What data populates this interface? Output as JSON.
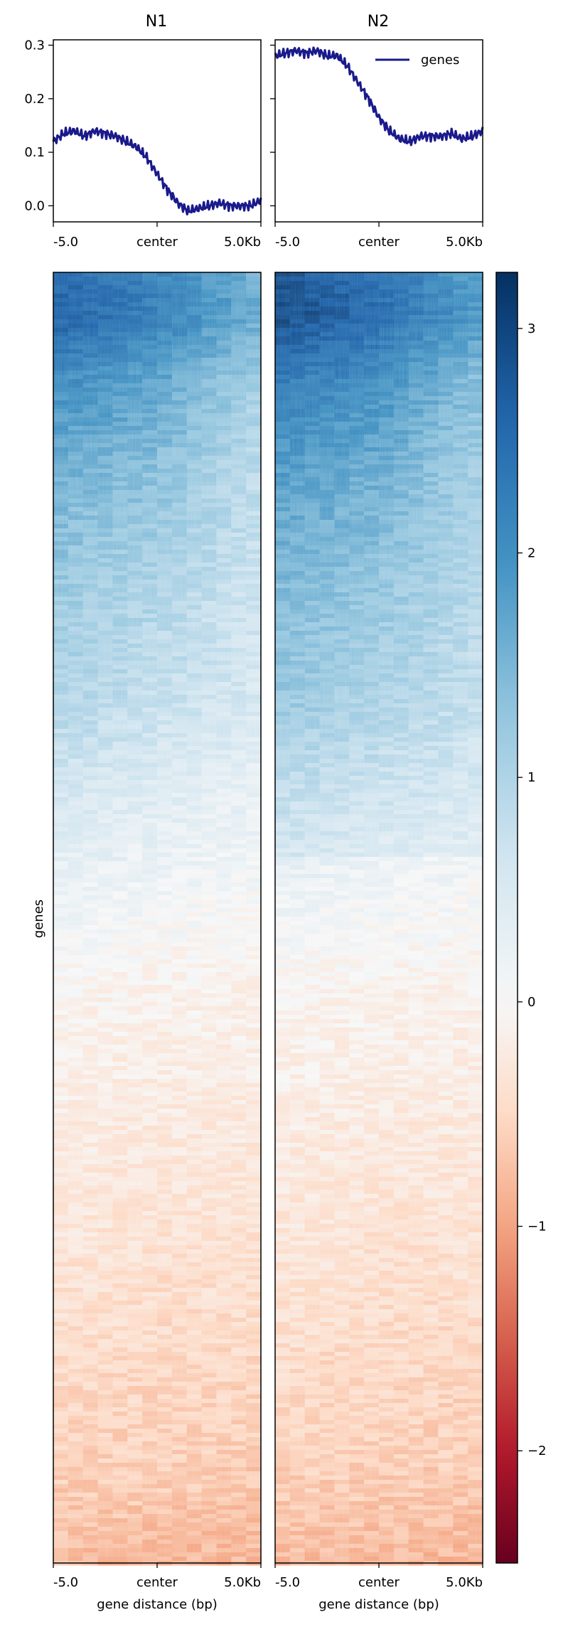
{
  "chart_data": {
    "type": "heatmap",
    "description_note": "",
    "profiles": [
      {
        "title": "N1",
        "series": [
          {
            "name": "genes",
            "color": "#1a1a8c",
            "x": [
              -5.0,
              -4.5,
              -4.0,
              -3.5,
              -3.0,
              -2.5,
              -2.0,
              -1.5,
              -1.0,
              -0.5,
              0.0,
              0.5,
              1.0,
              1.5,
              2.0,
              2.5,
              3.0,
              3.5,
              4.0,
              4.5,
              5.0
            ],
            "y": [
              0.12,
              0.135,
              0.14,
              0.13,
              0.14,
              0.135,
              0.13,
              0.12,
              0.11,
              0.09,
              0.06,
              0.03,
              0.005,
              -0.01,
              -0.005,
              0.0,
              0.005,
              0.0,
              0.0,
              0.0,
              0.01
            ]
          }
        ]
      },
      {
        "title": "N2",
        "series": [
          {
            "name": "genes",
            "color": "#1a1a8c",
            "x": [
              -5.0,
              -4.5,
              -4.0,
              -3.5,
              -3.0,
              -2.5,
              -2.0,
              -1.5,
              -1.0,
              -0.5,
              0.0,
              0.5,
              1.0,
              1.5,
              2.0,
              2.5,
              3.0,
              3.5,
              4.0,
              4.5,
              5.0
            ],
            "y": [
              0.28,
              0.285,
              0.29,
              0.285,
              0.29,
              0.28,
              0.28,
              0.26,
              0.23,
              0.2,
              0.165,
              0.14,
              0.125,
              0.12,
              0.13,
              0.13,
              0.13,
              0.135,
              0.125,
              0.13,
              0.14
            ]
          }
        ]
      }
    ],
    "profile_ylim": [
      -0.03,
      0.31
    ],
    "profile_yticks": [
      "0.0",
      "0.1",
      "0.2",
      "0.3"
    ],
    "xticks": [
      "-5.0",
      "center",
      "5.0Kb"
    ],
    "legend": {
      "label": "genes",
      "placement": "top-right"
    },
    "heatmaps": [
      {
        "panel": "N1",
        "ylabel": "genes",
        "xlabel": "gene distance (bp)"
      },
      {
        "panel": "N2",
        "ylabel": "",
        "xlabel": "gene distance (bp)"
      }
    ],
    "heatmap_rows_fraction_by_value": [
      {
        "fraction": 0.0,
        "left": 2.6,
        "center": 2.2,
        "right": 1.6
      },
      {
        "fraction": 0.03,
        "left": 2.7,
        "center": 2.3,
        "right": 1.7
      },
      {
        "fraction": 0.08,
        "left": 2.1,
        "center": 1.8,
        "right": 1.2
      },
      {
        "fraction": 0.15,
        "left": 1.6,
        "center": 1.4,
        "right": 0.9
      },
      {
        "fraction": 0.25,
        "left": 1.2,
        "center": 1.0,
        "right": 0.7
      },
      {
        "fraction": 0.33,
        "left": 1.0,
        "center": 0.8,
        "right": 0.55
      },
      {
        "fraction": 0.4,
        "left": 0.6,
        "center": 0.45,
        "right": 0.3
      },
      {
        "fraction": 0.48,
        "left": 0.2,
        "center": 0.1,
        "right": 0.05
      },
      {
        "fraction": 0.55,
        "left": -0.05,
        "center": -0.1,
        "right": -0.1
      },
      {
        "fraction": 0.65,
        "left": -0.2,
        "center": -0.25,
        "right": -0.25
      },
      {
        "fraction": 0.8,
        "left": -0.4,
        "center": -0.45,
        "right": -0.45
      },
      {
        "fraction": 0.92,
        "left": -0.6,
        "center": -0.6,
        "right": -0.65
      },
      {
        "fraction": 1.0,
        "left": -0.8,
        "center": -0.85,
        "right": -0.85
      }
    ],
    "colorbar": {
      "min": -2.5,
      "max": 3.25,
      "ticks": [
        3,
        2,
        1,
        0,
        -1,
        -2
      ],
      "tick_labels": [
        "3",
        "2",
        "1",
        "0",
        "−1",
        "−2"
      ],
      "colormap": "RdBu",
      "colors_low_to_high": [
        "#67001f",
        "#b2182b",
        "#d6604d",
        "#f4a582",
        "#fddbc7",
        "#f7f7f7",
        "#d1e5f0",
        "#92c5de",
        "#4393c3",
        "#2166ac",
        "#053061"
      ]
    },
    "grid": false
  }
}
